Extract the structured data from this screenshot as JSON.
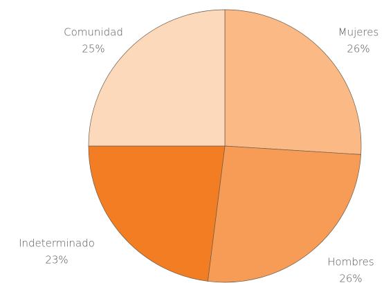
{
  "chart_data": {
    "type": "pie",
    "categories": [
      "Mujeres",
      "Hombres",
      "Indeterminado",
      "Comunidad"
    ],
    "values": [
      26,
      26,
      23,
      25
    ],
    "value_labels": [
      "26%",
      "26%",
      "23%",
      "25%"
    ],
    "colors": [
      "#fbb985",
      "#f79c56",
      "#f27d22",
      "#fdd9bb"
    ]
  }
}
